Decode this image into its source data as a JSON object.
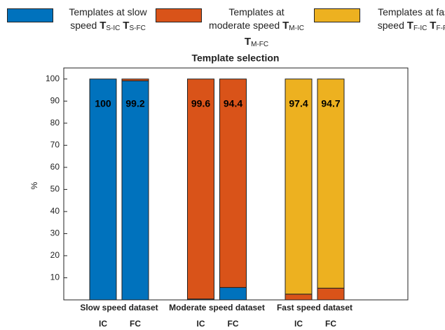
{
  "chart_data": {
    "type": "stacked_bar",
    "title": "Template selection",
    "y_label": "%",
    "groups": [
      "Slow speed dataset",
      "Moderate speed dataset",
      "Fast speed dataset"
    ],
    "categories": [
      "IC",
      "FC",
      "IC",
      "FC",
      "IC",
      "FC"
    ],
    "series": [
      {
        "name": "Templates at slow speed",
        "symbols": [
          {
            "base": "T",
            "sub": "S-IC"
          },
          {
            "base": "T",
            "sub": "S-FC"
          }
        ],
        "color": "#0072BD",
        "values": [
          100,
          99.2,
          0.4,
          5.6,
          0,
          0
        ]
      },
      {
        "name": "Templates at moderate speed",
        "symbols": [
          {
            "base": "T",
            "sub": "M-IC"
          },
          {
            "base": "T",
            "sub": "M-FC"
          }
        ],
        "color": "#D95319",
        "values": [
          0,
          0.8,
          99.6,
          94.4,
          2.6,
          5.3
        ]
      },
      {
        "name": "Templates at fast speed",
        "symbols": [
          {
            "base": "T",
            "sub": "F-IC"
          },
          {
            "base": "T",
            "sub": "F-FC"
          }
        ],
        "color": "#EDB120",
        "values": [
          0,
          0,
          0,
          0,
          97.4,
          94.7
        ]
      }
    ],
    "ylim": [
      0,
      105
    ],
    "yticks": [
      10,
      20,
      30,
      40,
      50,
      60,
      70,
      80,
      90,
      100
    ]
  }
}
